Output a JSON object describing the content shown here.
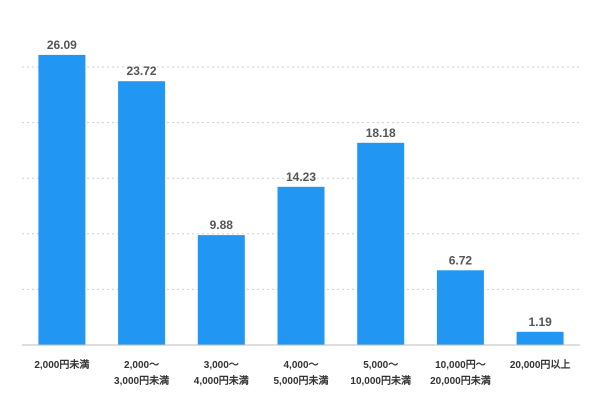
{
  "chart_data": {
    "type": "bar",
    "categories": [
      [
        "2,000円未満"
      ],
      [
        "2,000〜",
        "3,000円未満"
      ],
      [
        "3,000〜",
        "4,000円未満"
      ],
      [
        "4,000〜",
        "5,000円未満"
      ],
      [
        "5,000〜",
        "10,000円未満"
      ],
      [
        "10,000円〜",
        "20,000円未満"
      ],
      [
        "20,000円以上"
      ]
    ],
    "values": [
      26.09,
      23.72,
      9.88,
      14.23,
      18.18,
      6.72,
      1.19
    ],
    "value_labels": [
      "26.09",
      "23.72",
      "9.88",
      "14.23",
      "18.18",
      "6.72",
      "1.19"
    ],
    "ylim": [
      0,
      30
    ],
    "y_gridlines": [
      5,
      10,
      15,
      20,
      25
    ],
    "y_tick_labels_visible": false,
    "grid": true,
    "legend": "none",
    "colors": {
      "bar": "#2196F3"
    }
  }
}
